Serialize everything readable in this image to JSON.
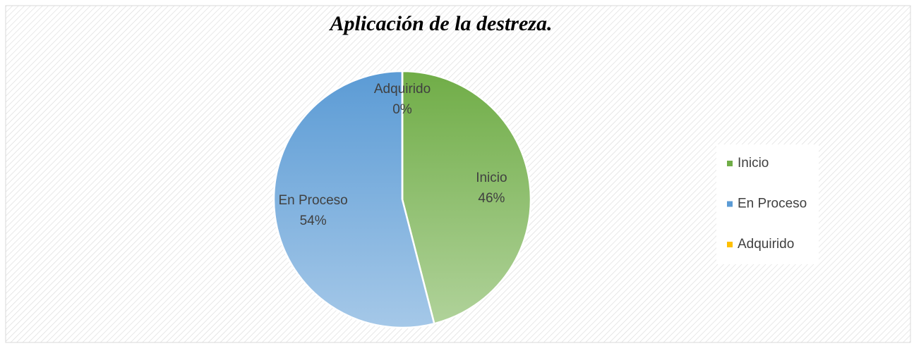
{
  "chart_data": {
    "type": "pie",
    "title": "Aplicación de la destreza.",
    "categories": [
      "Inicio",
      "En Proceso",
      "Adquirido"
    ],
    "values": [
      46,
      54,
      0
    ],
    "value_labels": [
      "46%",
      "54%",
      "0%"
    ],
    "colors": [
      "#70ad47",
      "#5b9bd5",
      "#ffc000"
    ],
    "legend": "right"
  }
}
